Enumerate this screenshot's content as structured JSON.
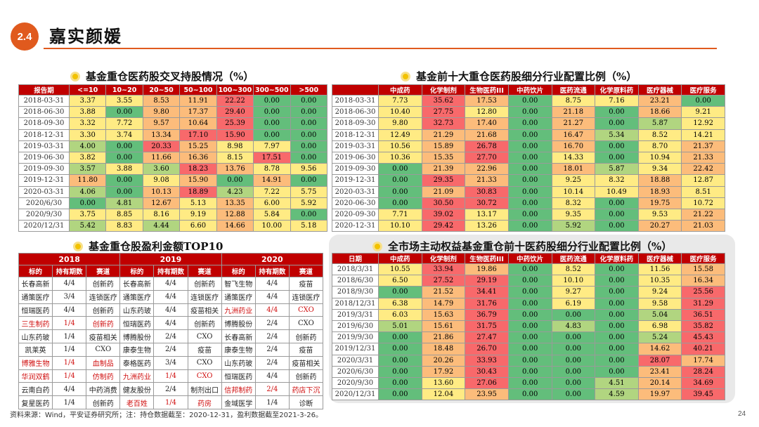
{
  "header": {
    "badge": "2.4",
    "title": "嘉实颜媛"
  },
  "sections": {
    "cross": "基金重仓医药股交叉持股情况（%）",
    "top10": "基金前十大重仓医药股细分行业配置比例（%）",
    "profit": "基金重仓股盈利金额TOP10",
    "market": "全市场主动权益基金重仓前十医药股细分行业配置比例（%）"
  },
  "colors": {
    "green": "#63be7b",
    "lgreen": "#b1d580",
    "yellow": "#ffeb84",
    "orange": "#fcbc7b",
    "red": "#f8696b"
  },
  "t1": {
    "headers": [
      "报告期",
      "<=10",
      "10~20",
      "20~50",
      "50~100",
      "100~300",
      "300~500",
      ">500"
    ],
    "rows": [
      {
        "d": "2018-03-31",
        "v": [
          "3.37",
          "3.55",
          "8.53",
          "11.91",
          "22.22",
          "0.00",
          "0.00"
        ],
        "c": [
          "y",
          "y",
          "o",
          "o",
          "r",
          "g",
          "g"
        ]
      },
      {
        "d": "2018-06-30",
        "v": [
          "3.88",
          "0.00",
          "9.80",
          "17.37",
          "29.40",
          "0.00",
          "0.00"
        ],
        "c": [
          "y",
          "g",
          "o",
          "o",
          "r",
          "g",
          "g"
        ]
      },
      {
        "d": "2018-09-30",
        "v": [
          "3.32",
          "7.72",
          "9.57",
          "10.64",
          "25.39",
          "0.00",
          "0.00"
        ],
        "c": [
          "y",
          "y",
          "o",
          "o",
          "r",
          "g",
          "g"
        ]
      },
      {
        "d": "2018-12-31",
        "v": [
          "3.30",
          "3.74",
          "13.34",
          "17.10",
          "15.90",
          "0.00",
          "0.00"
        ],
        "c": [
          "y",
          "y",
          "o",
          "r",
          "r",
          "g",
          "g"
        ]
      },
      {
        "d": "2019-03-31",
        "v": [
          "4.00",
          "0.00",
          "20.33",
          "15.25",
          "8.98",
          "7.97",
          "0.00"
        ],
        "c": [
          "l",
          "g",
          "r",
          "o",
          "y",
          "y",
          "g"
        ]
      },
      {
        "d": "2019-06-30",
        "v": [
          "3.82",
          "0.00",
          "11.66",
          "16.36",
          "8.15",
          "17.51",
          "0.00"
        ],
        "c": [
          "y",
          "g",
          "o",
          "o",
          "y",
          "r",
          "g"
        ]
      },
      {
        "d": "2019-09-30",
        "v": [
          "3.57",
          "3.88",
          "3.60",
          "18.23",
          "13.76",
          "8.78",
          "9.56"
        ],
        "c": [
          "l",
          "y",
          "l",
          "r",
          "o",
          "y",
          "y"
        ]
      },
      {
        "d": "2019-12-31",
        "v": [
          "11.80",
          "0.00",
          "9.08",
          "15.90",
          "0.00",
          "14.91",
          "0.00"
        ],
        "c": [
          "o",
          "g",
          "y",
          "o",
          "g",
          "o",
          "g"
        ]
      },
      {
        "d": "2020-03-31",
        "v": [
          "4.06",
          "0.00",
          "10.13",
          "18.89",
          "4.23",
          "7.22",
          "5.75"
        ],
        "c": [
          "l",
          "g",
          "o",
          "r",
          "l",
          "y",
          "y"
        ]
      },
      {
        "d": "2020/6/30",
        "v": [
          "0.00",
          "4.81",
          "12.67",
          "5.13",
          "13.35",
          "6.00",
          "5.92"
        ],
        "c": [
          "g",
          "l",
          "o",
          "y",
          "o",
          "y",
          "y"
        ]
      },
      {
        "d": "2020/9/30",
        "v": [
          "3.75",
          "8.85",
          "8.16",
          "9.19",
          "12.88",
          "5.84",
          "0.00"
        ],
        "c": [
          "y",
          "y",
          "y",
          "y",
          "o",
          "y",
          "g"
        ]
      },
      {
        "d": "2020/12/31",
        "v": [
          "5.42",
          "8.83",
          "4.44",
          "6.60",
          "14.66",
          "10.00",
          "5.18"
        ],
        "c": [
          "l",
          "y",
          "l",
          "y",
          "o",
          "y",
          "y"
        ]
      }
    ]
  },
  "t2": {
    "headers": [
      "",
      "中成药",
      "化学制剂",
      "生物医药III",
      "中药饮片",
      "医药流通",
      "化学原料药",
      "医疗器械",
      "医疗服务"
    ],
    "rows": [
      {
        "d": "2018-03-31",
        "v": [
          "7.73",
          "35.62",
          "17.53",
          "0.00",
          "8.75",
          "7.16",
          "23.21",
          "0.00"
        ],
        "c": [
          "y",
          "r",
          "o",
          "g",
          "y",
          "y",
          "o",
          "g"
        ]
      },
      {
        "d": "2018-06-30",
        "v": [
          "10.40",
          "27.75",
          "12.80",
          "0.00",
          "21.18",
          "0.00",
          "18.66",
          "9.21"
        ],
        "c": [
          "y",
          "r",
          "y",
          "g",
          "o",
          "g",
          "o",
          "y"
        ]
      },
      {
        "d": "2018-09-30",
        "v": [
          "9.80",
          "32.73",
          "17.40",
          "0.00",
          "21.27",
          "0.00",
          "5.87",
          "12.92"
        ],
        "c": [
          "y",
          "r",
          "o",
          "g",
          "o",
          "g",
          "l",
          "y"
        ]
      },
      {
        "d": "2018-12-31",
        "v": [
          "12.49",
          "21.29",
          "21.68",
          "0.00",
          "16.47",
          "5.34",
          "8.52",
          "14.21"
        ],
        "c": [
          "y",
          "o",
          "o",
          "g",
          "o",
          "l",
          "y",
          "y"
        ]
      },
      {
        "d": "2019-03-31",
        "v": [
          "10.56",
          "15.89",
          "26.78",
          "0.00",
          "16.70",
          "0.00",
          "8.70",
          "21.37"
        ],
        "c": [
          "y",
          "o",
          "r",
          "g",
          "o",
          "g",
          "y",
          "o"
        ]
      },
      {
        "d": "2019-06-30",
        "v": [
          "10.36",
          "15.35",
          "27.70",
          "0.00",
          "14.33",
          "0.00",
          "10.94",
          "21.33"
        ],
        "c": [
          "y",
          "o",
          "r",
          "g",
          "y",
          "g",
          "y",
          "o"
        ]
      },
      {
        "d": "2019-09-30",
        "v": [
          "0.00",
          "21.39",
          "22.96",
          "0.00",
          "18.01",
          "5.87",
          "9.34",
          "22.42"
        ],
        "c": [
          "g",
          "o",
          "o",
          "g",
          "o",
          "l",
          "y",
          "o"
        ]
      },
      {
        "d": "2019-12-31",
        "v": [
          "0.00",
          "29.35",
          "21.33",
          "0.00",
          "9.25",
          "8.32",
          "18.88",
          "12.87"
        ],
        "c": [
          "g",
          "r",
          "o",
          "g",
          "y",
          "y",
          "o",
          "y"
        ]
      },
      {
        "d": "2020-03-31",
        "v": [
          "0.00",
          "21.09",
          "30.83",
          "0.00",
          "10.14",
          "10.49",
          "18.93",
          "8.51"
        ],
        "c": [
          "g",
          "o",
          "r",
          "g",
          "y",
          "y",
          "o",
          "y"
        ]
      },
      {
        "d": "2020-06-30",
        "v": [
          "0.00",
          "30.50",
          "30.72",
          "0.00",
          "8.32",
          "0.00",
          "19.75",
          "10.72"
        ],
        "c": [
          "g",
          "r",
          "r",
          "g",
          "y",
          "g",
          "o",
          "y"
        ]
      },
      {
        "d": "2020-09-30",
        "v": [
          "7.71",
          "39.02",
          "13.17",
          "0.00",
          "9.35",
          "0.00",
          "9.53",
          "21.22"
        ],
        "c": [
          "y",
          "r",
          "y",
          "g",
          "y",
          "g",
          "y",
          "o"
        ]
      },
      {
        "d": "2020-12-31",
        "v": [
          "10.10",
          "29.42",
          "13.26",
          "0.00",
          "5.92",
          "0.00",
          "20.27",
          "21.03"
        ],
        "c": [
          "y",
          "r",
          "y",
          "g",
          "l",
          "g",
          "o",
          "o"
        ]
      }
    ]
  },
  "t3": {
    "years": [
      "2018",
      "2019",
      "2020"
    ],
    "sub": [
      "标的",
      "持有期数",
      "赛道"
    ],
    "rows": [
      [
        [
          "长春高新",
          "4/4",
          "创新药",
          0
        ],
        [
          "长春高新",
          "4/4",
          "创新药",
          0
        ],
        [
          "智飞生物",
          "4/4",
          "疫苗",
          0
        ]
      ],
      [
        [
          "通策医疗",
          "3/4",
          "连锁医疗",
          0
        ],
        [
          "通策医疗",
          "4/4",
          "连锁医疗",
          0
        ],
        [
          "通策医疗",
          "4/4",
          "连锁医疗",
          0
        ]
      ],
      [
        [
          "恒瑞医药",
          "4/4",
          "创新药",
          0
        ],
        [
          "山东药玻",
          "4/4",
          "疫苗相关",
          0
        ],
        [
          "九洲药业",
          "4/4",
          "CXO",
          1
        ]
      ],
      [
        [
          "三生制药",
          "1/4",
          "创新药",
          1
        ],
        [
          "恒瑞医药",
          "4/4",
          "创新药",
          0
        ],
        [
          "博腾股份",
          "2/4",
          "CXO",
          0
        ]
      ],
      [
        [
          "山东药玻",
          "1/4",
          "疫苗相关",
          0
        ],
        [
          "博腾股份",
          "2/4",
          "CXO",
          0
        ],
        [
          "长春高新",
          "2/4",
          "创新药",
          0
        ]
      ],
      [
        [
          "凯莱英",
          "1/4",
          "CXO",
          0
        ],
        [
          "康泰生物",
          "2/4",
          "疫苗",
          0
        ],
        [
          "康泰生物",
          "2/4",
          "疫苗",
          0
        ]
      ],
      [
        [
          "博雅生物",
          "1/4",
          "血制品",
          1
        ],
        [
          "泰格医药",
          "3/4",
          "CXO",
          0
        ],
        [
          "山东药玻",
          "2/4",
          "疫苗相关",
          0
        ]
      ],
      [
        [
          "华润双鹤",
          "1/4",
          "仿制药",
          1
        ],
        [
          "九洲药业",
          "1/4",
          "CXO",
          1
        ],
        [
          "恒瑞医药",
          "4/4",
          "创新药",
          0
        ]
      ],
      [
        [
          "云南白药",
          "4/4",
          "中药消费",
          0
        ],
        [
          "健友股份",
          "2/4",
          "制剂出口",
          0
        ],
        [
          "信邦制药",
          "2/4",
          "药店下沉",
          1
        ]
      ],
      [
        [
          "复星医药",
          "1/4",
          "创新药",
          0
        ],
        [
          "老百姓",
          "1/4",
          "药房",
          1
        ],
        [
          "金域医学",
          "1/4",
          "诊断",
          0
        ]
      ]
    ]
  },
  "t4": {
    "headers": [
      "日期",
      "中成药",
      "化学制剂",
      "生物医药III",
      "中药饮片",
      "医药流通",
      "化学原料药",
      "医疗器械",
      "医疗服务"
    ],
    "rows": [
      {
        "d": "2018/3/31",
        "v": [
          "10.55",
          "33.94",
          "19.86",
          "0.00",
          "8.52",
          "0.00",
          "11.56",
          "15.58"
        ],
        "c": [
          "y",
          "r",
          "o",
          "g",
          "y",
          "g",
          "y",
          "o"
        ]
      },
      {
        "d": "2018/6/30",
        "v": [
          "6.50",
          "27.52",
          "29.19",
          "0.00",
          "10.10",
          "0.00",
          "10.35",
          "16.34"
        ],
        "c": [
          "y",
          "r",
          "r",
          "g",
          "y",
          "g",
          "y",
          "o"
        ]
      },
      {
        "d": "2018/9/30",
        "v": [
          "0.00",
          "21.52",
          "34.41",
          "0.00",
          "9.27",
          "0.00",
          "9.24",
          "25.56"
        ],
        "c": [
          "g",
          "o",
          "r",
          "g",
          "y",
          "g",
          "y",
          "r"
        ]
      },
      {
        "d": "2018/12/31",
        "v": [
          "6.38",
          "14.79",
          "31.76",
          "0.00",
          "6.19",
          "0.00",
          "9.58",
          "31.29"
        ],
        "c": [
          "y",
          "o",
          "r",
          "g",
          "y",
          "g",
          "y",
          "r"
        ]
      },
      {
        "d": "2019/3/31",
        "v": [
          "6.03",
          "15.63",
          "36.79",
          "0.00",
          "0.00",
          "0.00",
          "5.04",
          "36.51"
        ],
        "c": [
          "y",
          "o",
          "r",
          "g",
          "g",
          "g",
          "l",
          "r"
        ]
      },
      {
        "d": "2019/6/30",
        "v": [
          "5.01",
          "15.61",
          "31.75",
          "0.00",
          "4.83",
          "0.00",
          "6.98",
          "35.82"
        ],
        "c": [
          "l",
          "o",
          "r",
          "g",
          "l",
          "g",
          "y",
          "r"
        ]
      },
      {
        "d": "2019/9/30",
        "v": [
          "0.00",
          "21.86",
          "27.47",
          "0.00",
          "0.00",
          "0.00",
          "5.24",
          "45.43"
        ],
        "c": [
          "g",
          "o",
          "r",
          "g",
          "g",
          "g",
          "l",
          "r"
        ]
      },
      {
        "d": "2019/12/31",
        "v": [
          "0.00",
          "18.48",
          "26.70",
          "0.00",
          "0.00",
          "0.00",
          "14.62",
          "40.21"
        ],
        "c": [
          "g",
          "o",
          "r",
          "g",
          "g",
          "g",
          "o",
          "r"
        ]
      },
      {
        "d": "2020/3/31",
        "v": [
          "0.00",
          "20.26",
          "33.93",
          "0.00",
          "0.00",
          "0.00",
          "28.07",
          "17.74"
        ],
        "c": [
          "g",
          "o",
          "r",
          "g",
          "g",
          "g",
          "r",
          "o"
        ]
      },
      {
        "d": "2020/6/30",
        "v": [
          "0.00",
          "17.92",
          "30.43",
          "0.00",
          "0.00",
          "0.00",
          "23.41",
          "28.24"
        ],
        "c": [
          "g",
          "o",
          "r",
          "g",
          "g",
          "g",
          "o",
          "r"
        ]
      },
      {
        "d": "2020/9/30",
        "v": [
          "0.00",
          "13.60",
          "27.06",
          "0.00",
          "0.00",
          "4.51",
          "20.14",
          "34.69"
        ],
        "c": [
          "g",
          "y",
          "r",
          "g",
          "g",
          "l",
          "o",
          "r"
        ]
      },
      {
        "d": "2020/12/31",
        "v": [
          "0.00",
          "12.04",
          "23.95",
          "0.00",
          "0.00",
          "4.59",
          "19.97",
          "39.45"
        ],
        "c": [
          "g",
          "y",
          "o",
          "g",
          "g",
          "l",
          "o",
          "r"
        ]
      }
    ]
  },
  "footer": "资料来源：Wind，平安证券研究所；注：持仓数据截至：2020-12-31，盈利数据截至2021-3-26。",
  "page_number": "24"
}
